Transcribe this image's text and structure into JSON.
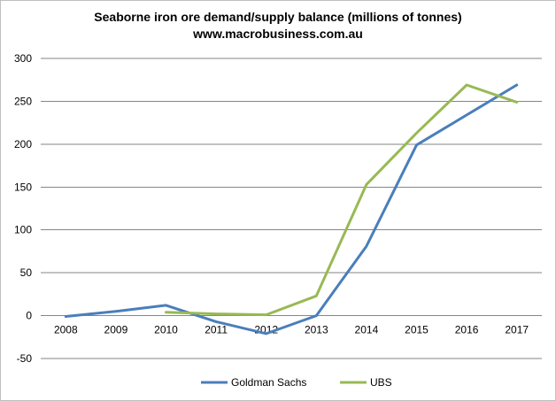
{
  "chart_data": {
    "type": "line",
    "title": "Seaborne iron ore demand/supply balance (millions of tonnes)",
    "subtitle": "www.macrobusiness.com.au",
    "xlabel": "",
    "ylabel": "",
    "categories": [
      "2008",
      "2009",
      "2010",
      "2011",
      "2012",
      "2013",
      "2014",
      "2015",
      "2016",
      "2017"
    ],
    "ylim": [
      -50,
      300
    ],
    "yticks": [
      -50,
      0,
      50,
      100,
      150,
      200,
      250,
      300
    ],
    "grid": true,
    "legend_position": "bottom",
    "series": [
      {
        "name": "Goldman Sachs",
        "color": "#4a7ebb",
        "values": [
          -1,
          5,
          12,
          -7,
          -21,
          0,
          81,
          199,
          234,
          269
        ]
      },
      {
        "name": "UBS",
        "color": "#98b954",
        "values": [
          null,
          null,
          4,
          2,
          1,
          23,
          153,
          213,
          269,
          249
        ]
      }
    ]
  }
}
